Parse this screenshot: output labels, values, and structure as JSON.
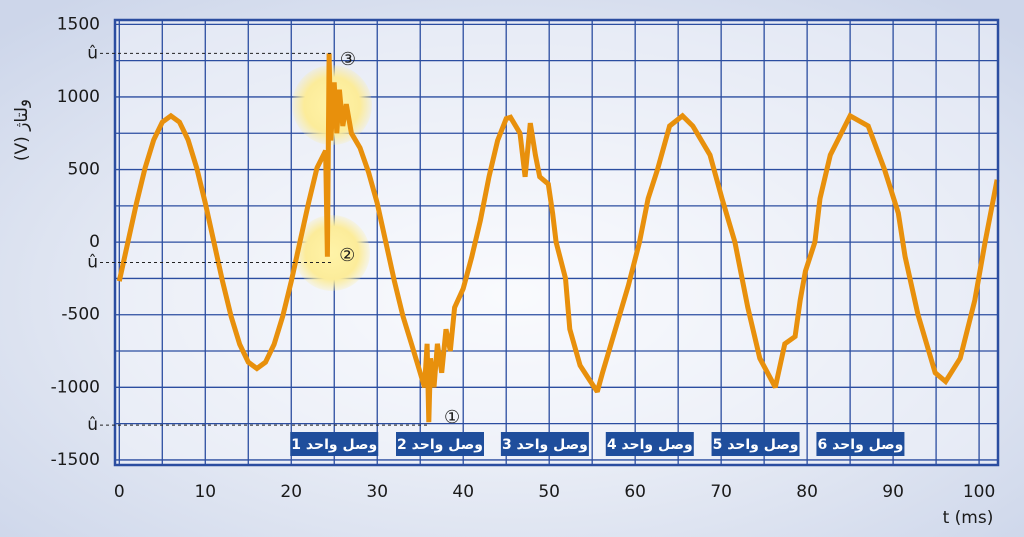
{
  "chart_data": {
    "type": "line",
    "x_label": "t (ms)",
    "y_label": "ولتاژ (V)",
    "xlim": [
      -0.5,
      102.2
    ],
    "xticks": [
      0,
      10,
      20,
      30,
      40,
      50,
      60,
      70,
      80,
      90,
      100
    ],
    "ylim": [
      -1535,
      1530
    ],
    "yticks": [
      1500,
      {
        "value": 1300,
        "label": "û"
      },
      1000,
      500,
      0,
      {
        "value": -140,
        "label": "û"
      },
      -500,
      -1000,
      {
        "value": -1260,
        "label": "û"
      },
      -1500
    ],
    "grid": true,
    "series": [
      {
        "color": "#e8900c",
        "x": [
          0,
          1,
          2,
          3,
          4,
          5,
          6,
          7,
          8,
          9,
          10,
          11,
          12,
          13,
          14,
          15,
          16,
          17,
          18,
          19,
          20,
          21,
          22,
          23,
          24,
          24.2,
          24.4,
          24.6,
          25,
          25.3,
          25.6,
          26,
          26.4,
          27,
          28,
          29,
          30,
          31,
          32,
          33,
          34,
          35,
          35.5,
          35.8,
          36,
          36.2,
          36.6,
          37,
          37.5,
          38,
          38.5,
          39,
          40,
          41,
          42,
          43,
          44,
          45,
          45.5,
          46.6,
          47.2,
          47.8,
          48.4,
          48.9,
          49.9,
          50.4,
          50.8,
          51.9,
          52.4,
          53.6,
          54.7,
          55.6,
          56.2,
          57.2,
          58.2,
          59.2,
          60.5,
          61.5,
          62.6,
          64,
          65.5,
          66.7,
          68.7,
          70.1,
          71.6,
          73.1,
          74.5,
          76.3,
          77.4,
          78.6,
          79.2,
          79.8,
          80.9,
          81.5,
          82.7,
          85,
          87.1,
          89,
          90.6,
          91.4,
          92.9,
          94.9,
          96.1,
          97.8,
          99.5,
          100.7,
          102.1
        ],
        "values": [
          -269,
          0,
          269,
          511,
          704,
          827,
          870,
          827,
          704,
          511,
          269,
          0,
          -269,
          -511,
          -704,
          -827,
          -870,
          -827,
          -704,
          -511,
          -269,
          0,
          269,
          511,
          630,
          -100,
          1300,
          700,
          1100,
          750,
          1050,
          800,
          950,
          750,
          650,
          480,
          269,
          0,
          -269,
          -511,
          -704,
          -900,
          -1000,
          -700,
          -1240,
          -800,
          -1000,
          -700,
          -900,
          -600,
          -750,
          -450,
          -320,
          -100,
          150,
          450,
          700,
          850,
          860,
          750,
          450,
          820,
          600,
          450,
          400,
          200,
          0,
          -250,
          -600,
          -850,
          -950,
          -1030,
          -900,
          -700,
          -500,
          -300,
          0,
          300,
          500,
          800,
          870,
          800,
          600,
          300,
          0,
          -450,
          -800,
          -1000,
          -700,
          -650,
          -400,
          -200,
          0,
          300,
          600,
          870,
          800,
          500,
          200,
          -100,
          -500,
          -900,
          -960,
          -800,
          -400,
          0,
          430
        ]
      }
    ],
    "annotations": [
      {
        "label": "①",
        "x": 38.7,
        "y": -1211
      },
      {
        "label": "②",
        "x": 26.5,
        "y": -95
      },
      {
        "label": "③",
        "x": 26.6,
        "y": 1255
      }
    ],
    "events": [
      {
        "label": "وصل واحد 1",
        "x": 25
      },
      {
        "label": "وصل واحد 2",
        "x": 37.3
      },
      {
        "label": "وصل واحد 3",
        "x": 49.5
      },
      {
        "label": "وصل واحد 4",
        "x": 61.7
      },
      {
        "label": "وصل واحد 5",
        "x": 74
      },
      {
        "label": "وصل واحد 6",
        "x": 86.2
      }
    ]
  }
}
